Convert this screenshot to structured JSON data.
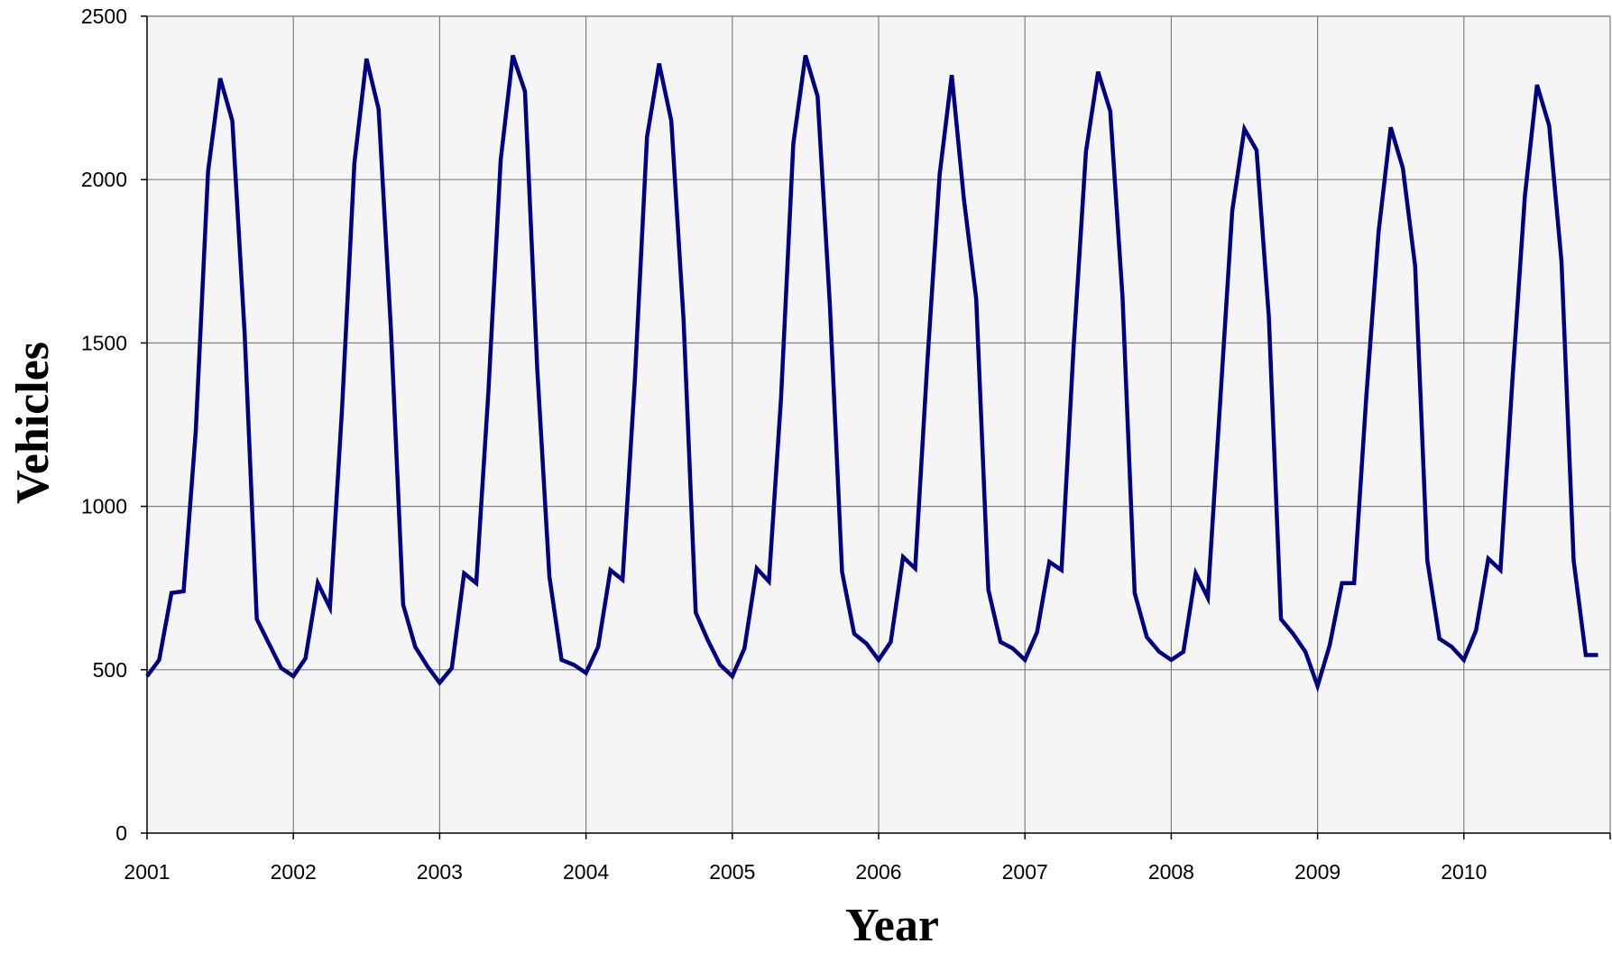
{
  "chart_data": {
    "type": "line",
    "title": "",
    "xlabel": "Year",
    "ylabel": "Vehicles",
    "x_tick_labels": [
      "2001",
      "2002",
      "2003",
      "2004",
      "2005",
      "2006",
      "2007",
      "2008",
      "2009",
      "2010"
    ],
    "y_tick_labels": [
      "0",
      "500",
      "1000",
      "1500",
      "2000",
      "2500"
    ],
    "xlim": [
      2001,
      2011
    ],
    "ylim": [
      0,
      2500
    ],
    "grid": true,
    "legend": "none",
    "colors": {
      "line": "#000080",
      "plot_background": "#f5f5f5",
      "grid": "#808080"
    },
    "series": [
      {
        "x": [
          2001.0,
          2001.083,
          2001.167,
          2001.25,
          2001.333,
          2001.417,
          2001.5,
          2001.583,
          2001.667,
          2001.75,
          2001.833,
          2001.917,
          2002.0,
          2002.083,
          2002.167,
          2002.25,
          2002.333,
          2002.417,
          2002.5,
          2002.583,
          2002.667,
          2002.75,
          2002.833,
          2002.917,
          2003.0,
          2003.083,
          2003.167,
          2003.25,
          2003.333,
          2003.417,
          2003.5,
          2003.583,
          2003.667,
          2003.75,
          2003.833,
          2003.917,
          2004.0,
          2004.083,
          2004.167,
          2004.25,
          2004.333,
          2004.417,
          2004.5,
          2004.583,
          2004.667,
          2004.75,
          2004.833,
          2004.917,
          2005.0,
          2005.083,
          2005.167,
          2005.25,
          2005.333,
          2005.417,
          2005.5,
          2005.583,
          2005.667,
          2005.75,
          2005.833,
          2005.917,
          2006.0,
          2006.083,
          2006.167,
          2006.25,
          2006.333,
          2006.417,
          2006.5,
          2006.583,
          2006.667,
          2006.75,
          2006.833,
          2006.917,
          2007.0,
          2007.083,
          2007.167,
          2007.25,
          2007.333,
          2007.417,
          2007.5,
          2007.583,
          2007.667,
          2007.75,
          2007.833,
          2007.917,
          2008.0,
          2008.083,
          2008.167,
          2008.25,
          2008.333,
          2008.417,
          2008.5,
          2008.583,
          2008.667,
          2008.75,
          2008.833,
          2008.917,
          2009.0,
          2009.083,
          2009.167,
          2009.25,
          2009.333,
          2009.417,
          2009.5,
          2009.583,
          2009.667,
          2009.75,
          2009.833,
          2009.917,
          2010.0,
          2010.083,
          2010.167,
          2010.25,
          2010.333,
          2010.417,
          2010.5,
          2010.583,
          2010.667,
          2010.75,
          2010.833,
          2010.917
        ],
        "y": [
          480,
          530,
          735,
          740,
          1230,
          2025,
          2310,
          2180,
          1530,
          655,
          580,
          505,
          480,
          535,
          765,
          690,
          1300,
          2050,
          2370,
          2215,
          1540,
          700,
          570,
          510,
          460,
          505,
          795,
          765,
          1350,
          2060,
          2380,
          2270,
          1420,
          785,
          530,
          515,
          490,
          570,
          805,
          775,
          1380,
          2130,
          2355,
          2180,
          1570,
          675,
          590,
          515,
          480,
          565,
          810,
          770,
          1330,
          2110,
          2380,
          2255,
          1615,
          800,
          610,
          580,
          530,
          585,
          845,
          810,
          1440,
          2015,
          2320,
          1940,
          1635,
          745,
          585,
          565,
          530,
          615,
          830,
          805,
          1490,
          2085,
          2330,
          2210,
          1640,
          735,
          600,
          555,
          530,
          555,
          795,
          720,
          1310,
          1905,
          2155,
          2090,
          1580,
          655,
          610,
          555,
          450,
          575,
          765,
          765,
          1335,
          1840,
          2160,
          2035,
          1735,
          835,
          595,
          570,
          530,
          620,
          840,
          805,
          1395,
          1950,
          2290,
          2165,
          1750,
          835,
          545,
          545
        ]
      }
    ]
  }
}
